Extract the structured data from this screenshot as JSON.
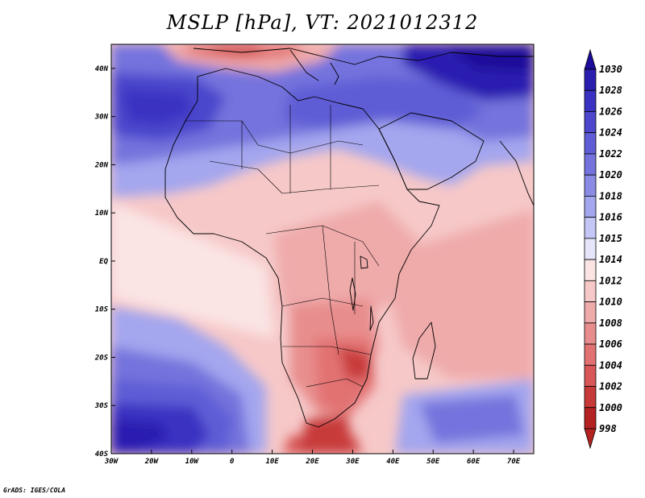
{
  "title": "MSLP [hPa], VT: 2021012312",
  "credit": "GrADS: IGES/COLA",
  "map": {
    "variable": "MSLP",
    "units": "hPa",
    "valid_time": "2021012312",
    "region": "Africa",
    "lon_range": [
      -30,
      75
    ],
    "lat_range": [
      -40,
      45
    ]
  },
  "axes": {
    "x_labels": [
      "30W",
      "20W",
      "10W",
      "0",
      "10E",
      "20E",
      "30E",
      "40E",
      "50E",
      "60E",
      "70E"
    ],
    "y_labels": [
      "40N",
      "30N",
      "20N",
      "10N",
      "EQ",
      "10S",
      "20S",
      "30S",
      "40S"
    ]
  },
  "colorbar": {
    "levels": [
      "1030",
      "1028",
      "1026",
      "1024",
      "1022",
      "1020",
      "1018",
      "1016",
      "1015",
      "1014",
      "1012",
      "1010",
      "1008",
      "1006",
      "1004",
      "1002",
      "1000",
      "998"
    ],
    "colors": [
      "#1c0c9a",
      "#2a1eb0",
      "#3a32c2",
      "#4c47cc",
      "#5f5dd5",
      "#7473dd",
      "#8a8be5",
      "#a4a6ee",
      "#c4c6f5",
      "#e6e6fb",
      "#fbe4e4",
      "#f6c8c8",
      "#efaaaa",
      "#e88d8d",
      "#e27272",
      "#d85656",
      "#c83a3a",
      "#b42222"
    ]
  }
}
